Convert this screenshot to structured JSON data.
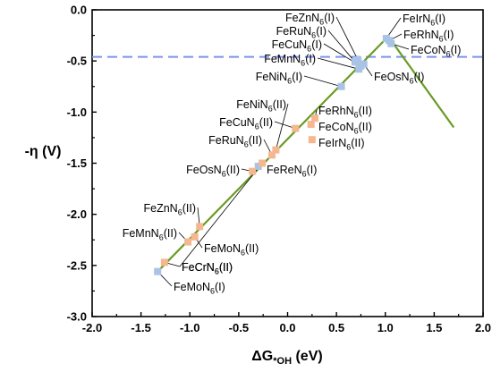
{
  "chart_data": {
    "type": "scatter",
    "title": "",
    "ylabel": "-η (V)",
    "xlabel_main": "ΔG",
    "xlabel_sub": "*OH",
    "xlabel_unit": " (eV)",
    "xlim": [
      -2.0,
      2.0
    ],
    "ylim": [
      -3.0,
      0.0
    ],
    "xticks": [
      "-2.0",
      "-1.5",
      "-1.0",
      "-0.5",
      "0.0",
      "0.5",
      "1.0",
      "1.5",
      "2.0"
    ],
    "yticks": [
      "0.0",
      "-0.5",
      "-1.0",
      "-1.5",
      "-2.0",
      "-2.5",
      "-3.0"
    ],
    "grid": false,
    "colors": {
      "type_I": "#a9c3e6",
      "type_II": "#f5b78f",
      "volcano_line": "#6a9b24",
      "reference_line": "#7a93ee",
      "leader": "#000000"
    },
    "reference_line": {
      "y": -0.46,
      "style": "dashed"
    },
    "volcano": {
      "left_branch": [
        [
          -1.33,
          -2.56
        ],
        [
          1.03,
          -0.26
        ]
      ],
      "right_branch": [
        [
          1.03,
          -0.26
        ],
        [
          1.7,
          -1.15
        ]
      ]
    },
    "series": [
      {
        "group": "type_I",
        "points": [
          {
            "label": "FeZnN",
            "sub": "6",
            "suffix": "(I)",
            "x": 0.72,
            "y": -0.49
          },
          {
            "label": "FeRuN",
            "sub": "6",
            "suffix": "(I)",
            "x": 0.69,
            "y": -0.51
          },
          {
            "label": "FeCuN",
            "sub": "6",
            "suffix": "(I)",
            "x": 0.75,
            "y": -0.55
          },
          {
            "label": "FeMnN",
            "sub": "6",
            "suffix": "(I)",
            "x": 0.73,
            "y": -0.58
          },
          {
            "label": "FeNiN",
            "sub": "6",
            "suffix": "(I)",
            "x": 0.55,
            "y": -0.75
          },
          {
            "label": "FeOsN",
            "sub": "6",
            "suffix": "(I)",
            "x": 0.78,
            "y": -0.53
          },
          {
            "label": "FeIrN",
            "sub": "6",
            "suffix": "(I)",
            "x": 1.01,
            "y": -0.28
          },
          {
            "label": "FeRhN",
            "sub": "6",
            "suffix": "(I)",
            "x": 1.04,
            "y": -0.3
          },
          {
            "label": "FeCoN",
            "sub": "6",
            "suffix": "(I)",
            "x": 1.06,
            "y": -0.33
          },
          {
            "label": "FeReN",
            "sub": "6",
            "suffix": "(I)",
            "x": -0.3,
            "y": -1.53
          },
          {
            "label": "FeMoN",
            "sub": "6",
            "suffix": "(I)",
            "x": -1.33,
            "y": -2.56
          }
        ]
      },
      {
        "group": "type_II",
        "points": [
          {
            "label": "FeNiN",
            "sub": "6",
            "suffix": "(II)",
            "x": -0.12,
            "y": -1.37
          },
          {
            "label": "FeCuN",
            "sub": "6",
            "suffix": "(II)",
            "x": 0.08,
            "y": -1.16
          },
          {
            "label": "FeRuN",
            "sub": "6",
            "suffix": "(II)",
            "x": -0.16,
            "y": -1.42
          },
          {
            "label": "FeCrN",
            "sub": "6",
            "suffix": "(II)",
            "x": -0.26,
            "y": -1.5
          },
          {
            "label": "FeOsN",
            "sub": "6",
            "suffix": "(II)",
            "x": -0.36,
            "y": -1.58
          },
          {
            "label": "FeRhN",
            "sub": "6",
            "suffix": "(II)",
            "x": 0.28,
            "y": -1.06
          },
          {
            "label": "FeCoN",
            "sub": "6",
            "suffix": "(II)",
            "x": 0.24,
            "y": -1.12
          },
          {
            "label": "FeIrN",
            "sub": "6",
            "suffix": "(II)",
            "x": 0.25,
            "y": -1.27
          },
          {
            "label": "FeZnN",
            "sub": "6",
            "suffix": "(II)",
            "x": -0.9,
            "y": -2.12
          },
          {
            "label": "FeMnN",
            "sub": "6",
            "suffix": "(II)",
            "x": -1.02,
            "y": -2.27
          },
          {
            "label": "FeMoN",
            "sub": "6",
            "suffix": "(II)",
            "x": -0.95,
            "y": -2.22
          },
          {
            "label": "FeCrN",
            "sub": "6",
            "suffix": "(II)",
            "x": -1.26,
            "y": -2.47
          }
        ]
      }
    ]
  }
}
